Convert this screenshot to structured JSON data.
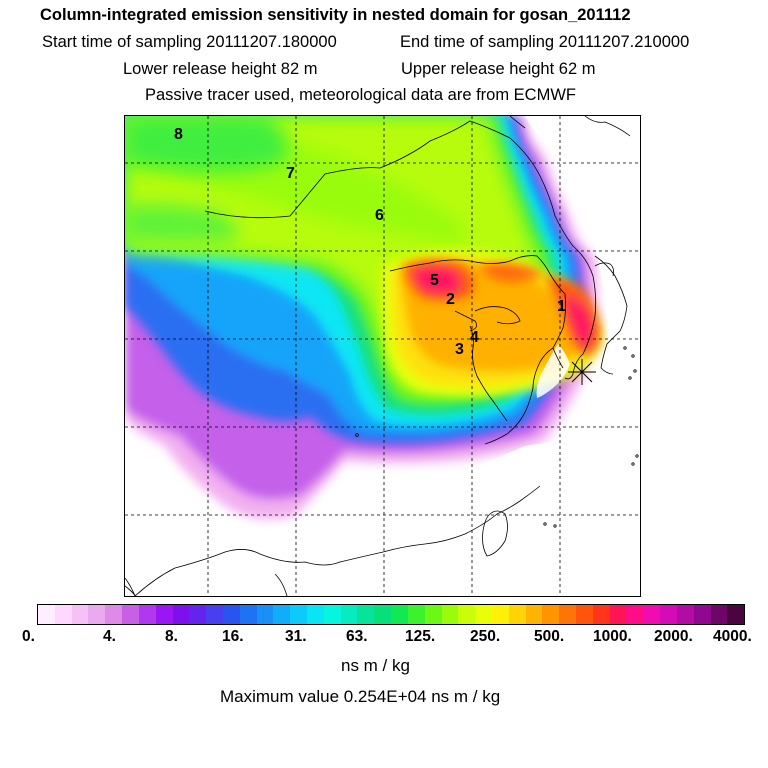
{
  "header": {
    "title": "Column-integrated emission sensitivity in nested domain for gosan_201112",
    "start_label": "Start time of sampling 20111207.180000",
    "end_label": "End time of sampling 20111207.210000",
    "lower_label": "Lower release height   82 m",
    "upper_label": "Upper release height   62 m",
    "tracer_label": "Passive tracer used, meteorological data are from ECMWF"
  },
  "map": {
    "day_markers": [
      "1",
      "2",
      "3",
      "4",
      "5",
      "6",
      "7",
      "8"
    ],
    "receptor": "gosan"
  },
  "colorbar": {
    "ticks": [
      "0.",
      "4.",
      "8.",
      "16.",
      "31.",
      "63.",
      "125.",
      "250.",
      "500.",
      "1000.",
      "2000.",
      "4000."
    ],
    "colors": [
      "#ffeeff",
      "#ffd8ff",
      "#f6c2f6",
      "#eaaaef",
      "#de8ae8",
      "#c860e6",
      "#b038ee",
      "#9a16f4",
      "#7e10ee",
      "#6424ee",
      "#4840ee",
      "#2a54f0",
      "#1e72f4",
      "#1890f8",
      "#10aefa",
      "#0ccafc",
      "#08e6f4",
      "#06f4e0",
      "#06ecbe",
      "#06e49c",
      "#06e07a",
      "#12e854",
      "#3cf22c",
      "#6cf816",
      "#98fc0c",
      "#c8ff08",
      "#e8ff08",
      "#fff008",
      "#ffd404",
      "#ffb404",
      "#ff9400",
      "#ff7408",
      "#ff540c",
      "#ff3418",
      "#ff1454",
      "#ff0c88",
      "#f00cb0",
      "#d40cb8",
      "#b20ca4",
      "#900890",
      "#6e0668",
      "#4a0440"
    ],
    "unit": "ns m / kg"
  },
  "footer": {
    "maximum_label": "Maximum value  0.254E+04 ns m / kg"
  }
}
